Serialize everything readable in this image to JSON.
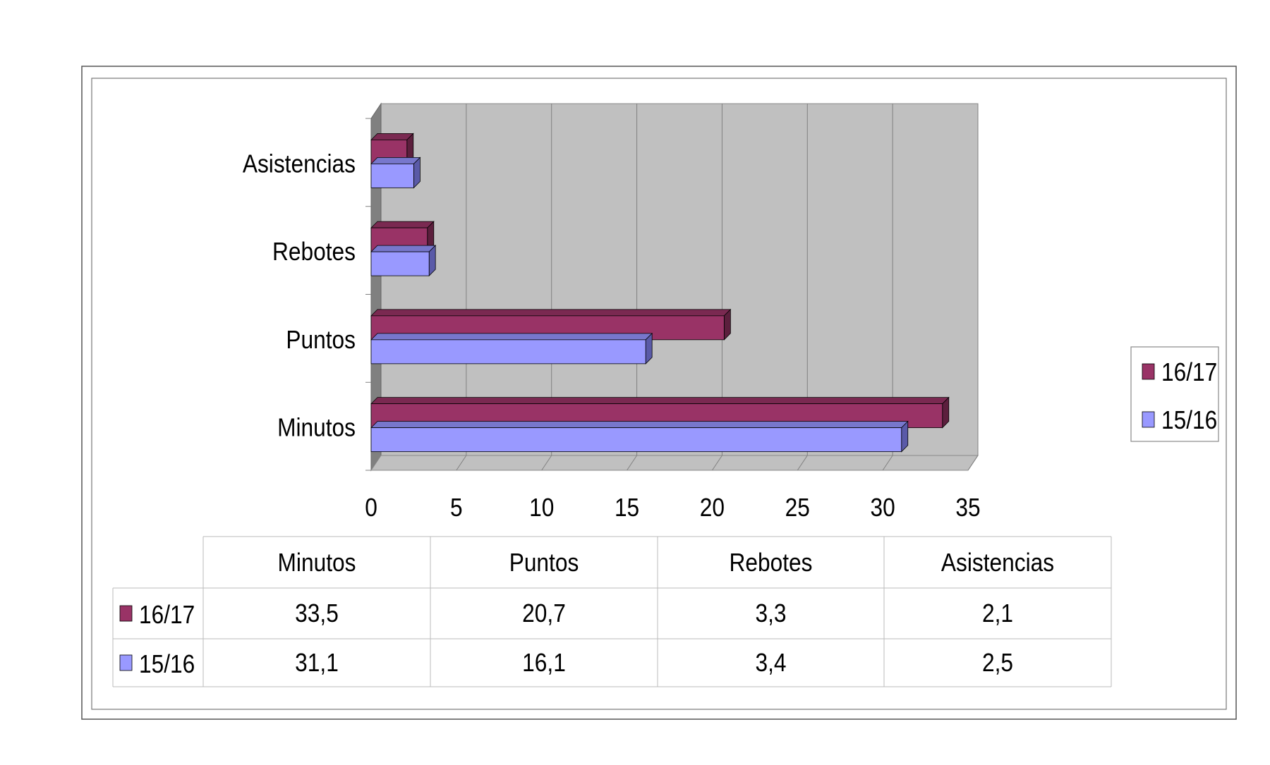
{
  "chart_data": {
    "type": "bar",
    "orientation": "horizontal",
    "three_d": true,
    "categories": [
      "Minutos",
      "Puntos",
      "Rebotes",
      "Asistencias"
    ],
    "series": [
      {
        "name": "16/17",
        "values": [
          33.5,
          20.7,
          3.3,
          2.1
        ],
        "value_labels": [
          "33,5",
          "20,7",
          "3,3",
          "2,1"
        ],
        "color": "#993366",
        "side_color": "#5c1f3d",
        "top_color": "#7a2951"
      },
      {
        "name": "15/16",
        "values": [
          31.1,
          16.1,
          3.4,
          2.5
        ],
        "value_labels": [
          "31,1",
          "16,1",
          "3,4",
          "2,5"
        ],
        "color": "#9999ff",
        "side_color": "#5a5aa8",
        "top_color": "#7777cc"
      }
    ],
    "xlim": [
      0,
      35
    ],
    "xticks": [
      0,
      5,
      10,
      15,
      20,
      25,
      30,
      35
    ],
    "grid": true,
    "plot_background": "#c0c0c0",
    "legend": {
      "position": "right",
      "entries": [
        "16/17",
        "15/16"
      ]
    },
    "data_table": true
  }
}
